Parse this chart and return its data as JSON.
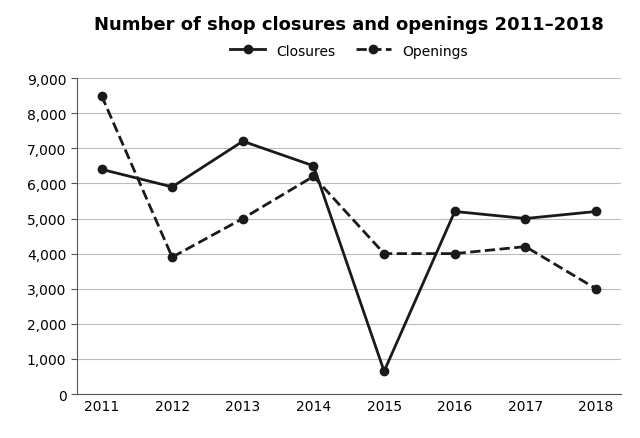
{
  "title": "Number of shop closures and openings 2011–2018",
  "years": [
    2011,
    2012,
    2013,
    2014,
    2015,
    2016,
    2017,
    2018
  ],
  "closures": [
    6400,
    5900,
    7200,
    6500,
    650,
    5200,
    5000,
    5200
  ],
  "openings": [
    8500,
    3900,
    5000,
    6200,
    4000,
    4000,
    4200,
    3000
  ],
  "ylim": [
    0,
    9000
  ],
  "yticks": [
    0,
    1000,
    2000,
    3000,
    4000,
    5000,
    6000,
    7000,
    8000,
    9000
  ],
  "line_color": "#1a1a1a",
  "background_color": "#ffffff",
  "grid_color": "#bbbbbb",
  "legend_closures": "Closures",
  "legend_openings": "Openings",
  "marker": "o",
  "marker_size": 6,
  "linewidth": 2.0,
  "title_fontsize": 13,
  "tick_fontsize": 10,
  "legend_fontsize": 10
}
